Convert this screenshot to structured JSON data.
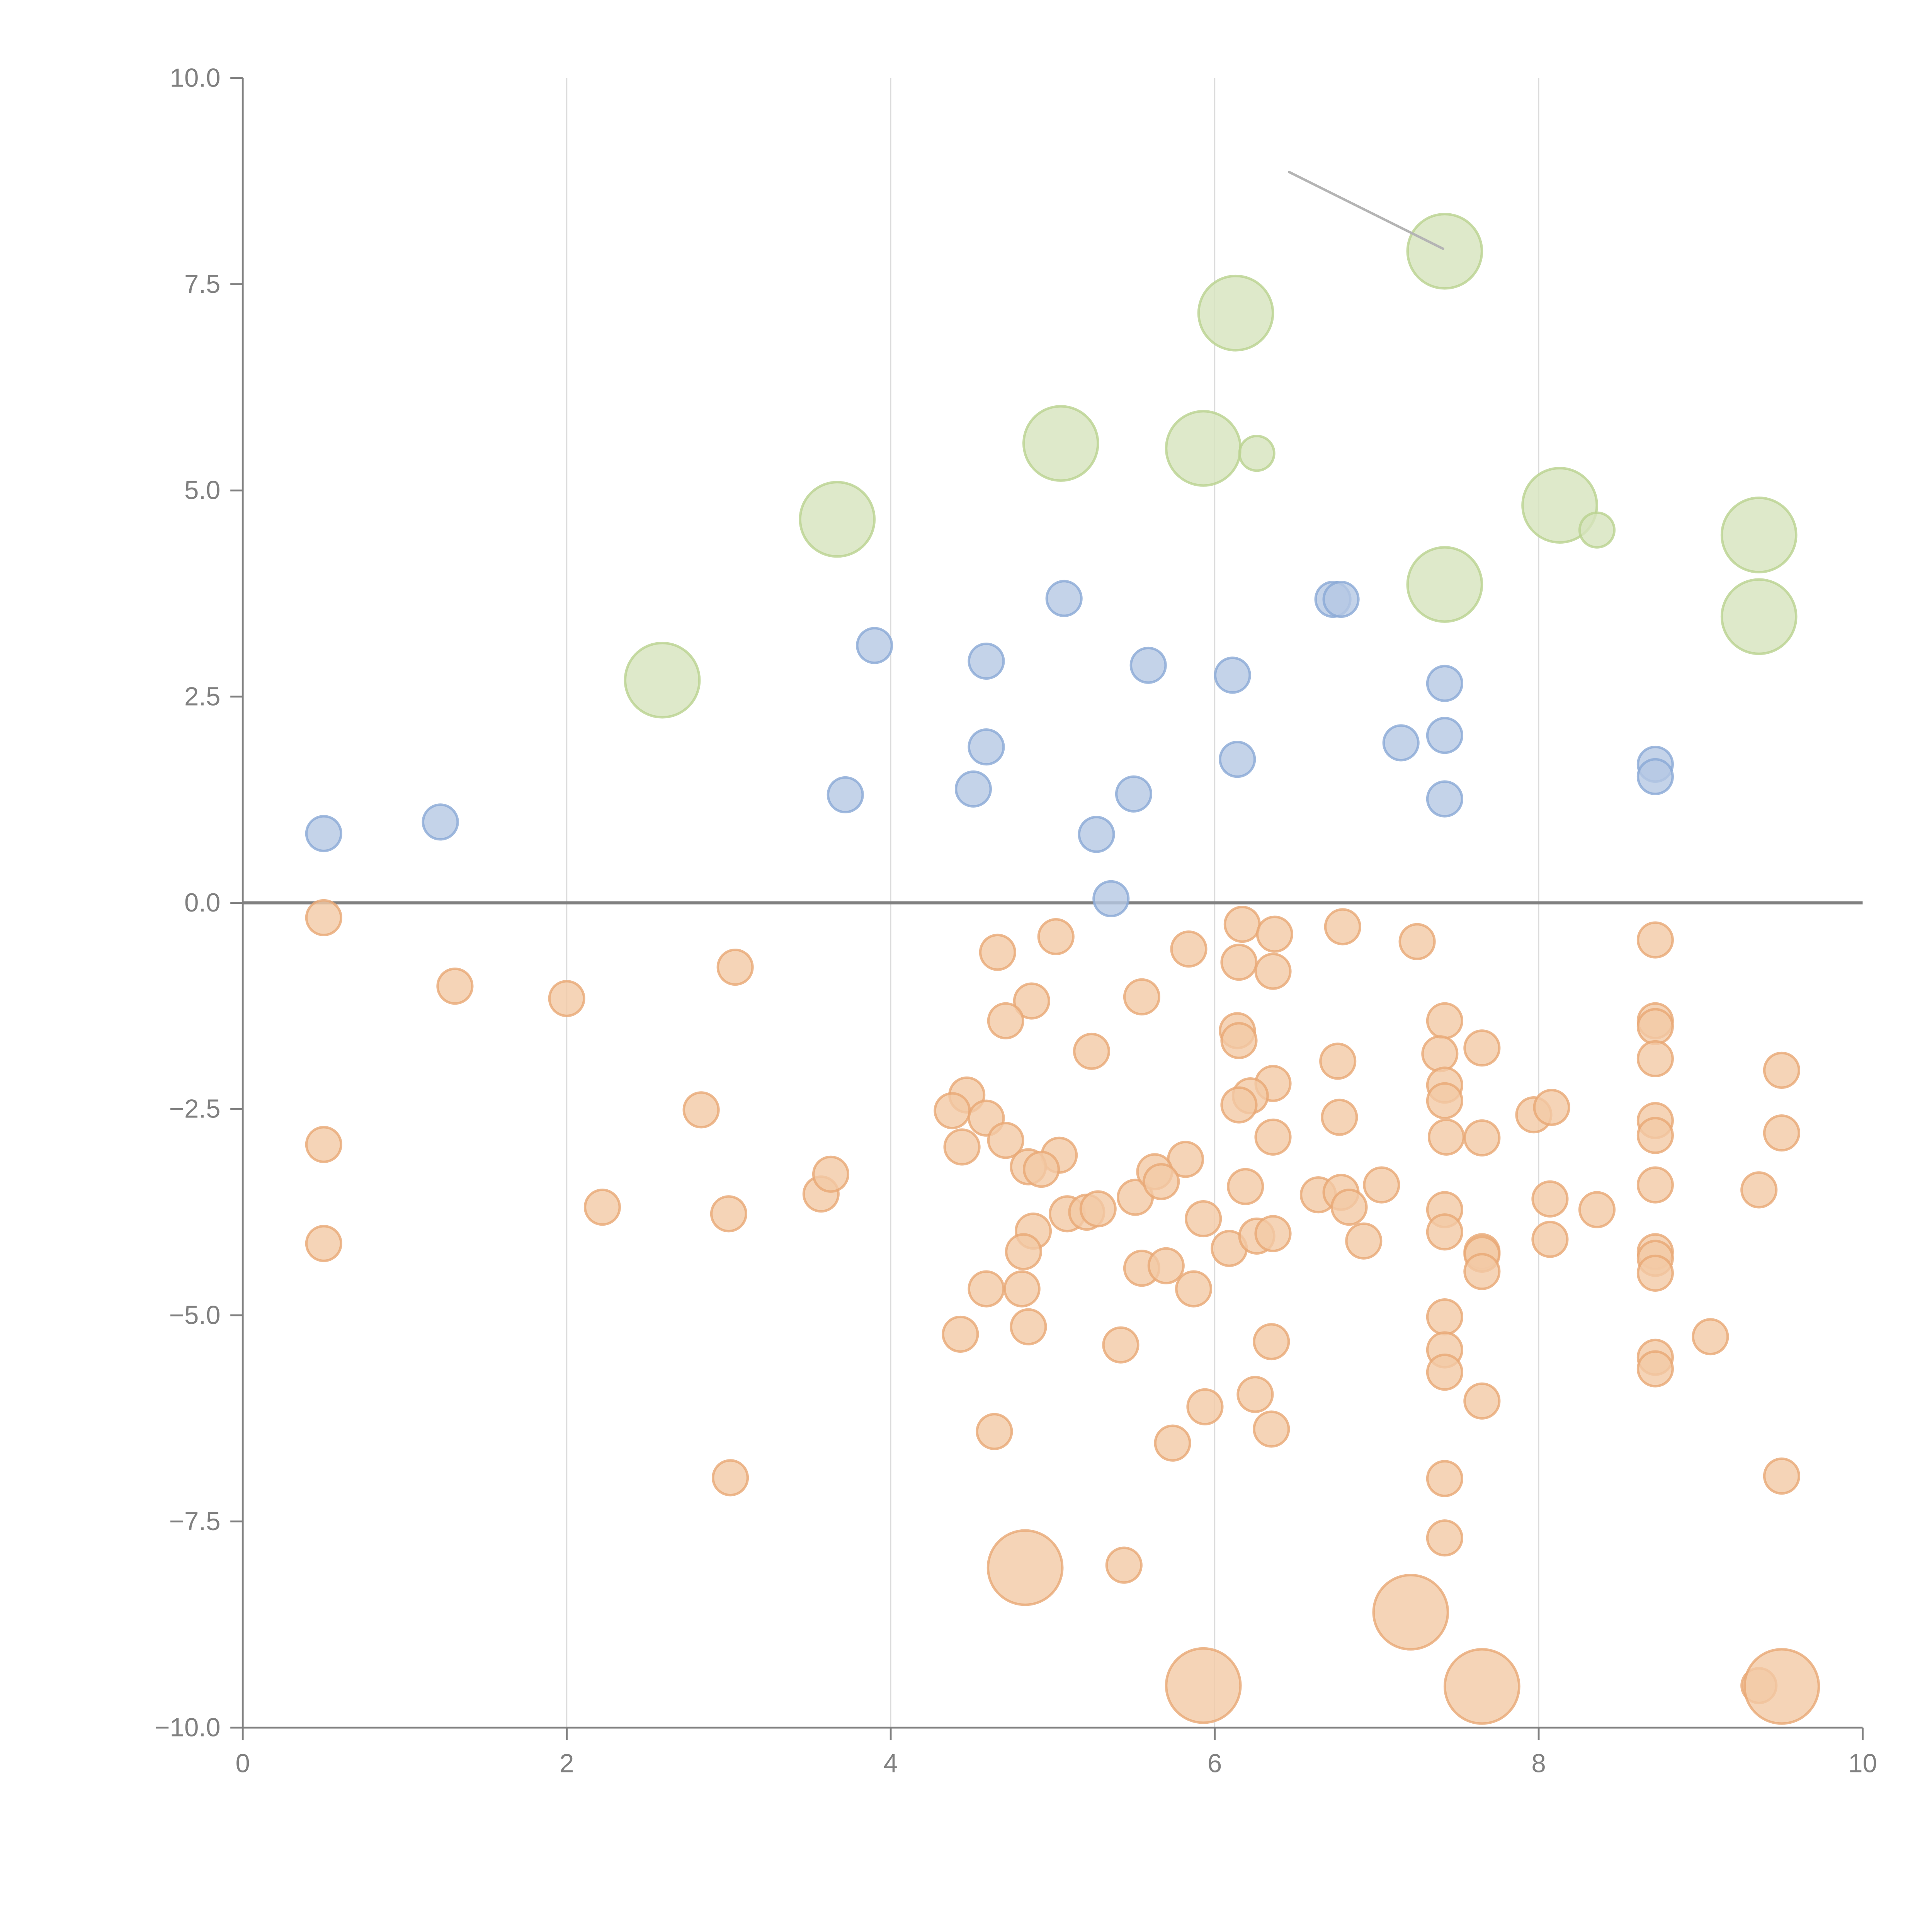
{
  "chart_data": {
    "type": "scatter",
    "title": "",
    "xlabel": "",
    "ylabel": "",
    "xlim": [
      0,
      10
    ],
    "ylim": [
      -10,
      10
    ],
    "grid": "vertical-only",
    "legend": "none",
    "x_ticks": [
      "0",
      "2",
      "4",
      "6",
      "8",
      "10"
    ],
    "x_tick_values": [
      0,
      2,
      4,
      6,
      8,
      10
    ],
    "y_ticks": [
      "10.0",
      "7.5",
      "5.0",
      "2.5",
      "0.0",
      "−2.5",
      "−5.0",
      "−7.5",
      "−10.0"
    ],
    "y_tick_values": [
      10,
      7.5,
      5,
      2.5,
      0,
      -2.5,
      -5,
      -7.5,
      -10
    ],
    "reference_line_y": 0,
    "annotation_line": {
      "from": [
        6.46,
        8.86
      ],
      "to": [
        7.41,
        7.93
      ],
      "color": "#b4b4b4"
    },
    "size_scale": {
      "small": 10,
      "large": 45
    },
    "series": [
      {
        "fill": "#d6e3bd",
        "stroke": "#b9d28f",
        "points": [
          [
            7.42,
            7.9,
            45
          ],
          [
            6.13,
            7.15,
            45
          ],
          [
            5.05,
            5.57,
            45
          ],
          [
            5.93,
            5.51,
            45
          ],
          [
            6.26,
            5.45,
            10
          ],
          [
            3.67,
            4.65,
            45
          ],
          [
            8.13,
            4.82,
            45
          ],
          [
            8.36,
            4.52,
            10
          ],
          [
            9.36,
            4.46,
            45
          ],
          [
            7.42,
            3.86,
            45
          ],
          [
            9.36,
            3.47,
            45
          ],
          [
            2.59,
            2.7,
            45
          ]
        ]
      },
      {
        "fill": "#b5c8e4",
        "stroke": "#8aa9d6",
        "points": [
          [
            0.5,
            0.84,
            10
          ],
          [
            1.22,
            0.98,
            10
          ],
          [
            3.9,
            3.12,
            10
          ],
          [
            3.72,
            1.31,
            10
          ],
          [
            4.59,
            2.93,
            10
          ],
          [
            4.59,
            1.89,
            10
          ],
          [
            4.51,
            1.38,
            10
          ],
          [
            5.07,
            3.69,
            10
          ],
          [
            5.59,
            2.88,
            10
          ],
          [
            5.5,
            1.32,
            10
          ],
          [
            5.27,
            0.83,
            10
          ],
          [
            5.36,
            0.05,
            10
          ],
          [
            6.11,
            2.76,
            10
          ],
          [
            6.14,
            1.74,
            10
          ],
          [
            6.73,
            3.68,
            10
          ],
          [
            6.78,
            3.68,
            10
          ],
          [
            7.15,
            1.94,
            10
          ],
          [
            7.42,
            2.66,
            10
          ],
          [
            7.42,
            2.03,
            10
          ],
          [
            7.42,
            1.26,
            10
          ],
          [
            8.72,
            1.68,
            10
          ],
          [
            8.72,
            1.53,
            10
          ]
        ]
      },
      {
        "fill": "#f2c9a5",
        "stroke": "#e8a774",
        "points": [
          [
            0.5,
            -0.18,
            10
          ],
          [
            0.5,
            -2.93,
            10
          ],
          [
            0.5,
            -4.13,
            10
          ],
          [
            1.31,
            -1.01,
            10
          ],
          [
            2.0,
            -1.16,
            10
          ],
          [
            3.04,
            -0.78,
            10
          ],
          [
            2.83,
            -2.51,
            10
          ],
          [
            2.22,
            -3.69,
            10
          ],
          [
            3.0,
            -3.77,
            10
          ],
          [
            3.01,
            -6.97,
            10
          ],
          [
            3.57,
            -3.53,
            10
          ],
          [
            3.63,
            -3.29,
            10
          ],
          [
            4.66,
            -0.6,
            10
          ],
          [
            5.02,
            -0.41,
            10
          ],
          [
            4.87,
            -1.19,
            10
          ],
          [
            4.71,
            -1.43,
            10
          ],
          [
            5.24,
            -1.8,
            10
          ],
          [
            4.47,
            -2.33,
            10
          ],
          [
            4.38,
            -2.52,
            10
          ],
          [
            4.59,
            -2.61,
            10
          ],
          [
            4.71,
            -2.88,
            10
          ],
          [
            4.44,
            -2.96,
            10
          ],
          [
            5.04,
            -3.06,
            10
          ],
          [
            4.85,
            -3.2,
            10
          ],
          [
            4.93,
            -3.23,
            10
          ],
          [
            4.88,
            -3.98,
            10
          ],
          [
            4.82,
            -4.23,
            10
          ],
          [
            5.09,
            -3.77,
            10
          ],
          [
            5.21,
            -3.75,
            10
          ],
          [
            5.28,
            -3.71,
            10
          ],
          [
            5.51,
            -3.57,
            10
          ],
          [
            4.81,
            -4.68,
            10
          ],
          [
            4.59,
            -4.68,
            10
          ],
          [
            4.85,
            -5.14,
            10
          ],
          [
            4.43,
            -5.23,
            10
          ],
          [
            4.64,
            -6.41,
            10
          ],
          [
            5.42,
            -5.36,
            10
          ],
          [
            5.44,
            -8.03,
            10
          ],
          [
            5.55,
            -1.14,
            10
          ],
          [
            5.84,
            -0.56,
            10
          ],
          [
            5.82,
            -3.11,
            10
          ],
          [
            5.63,
            -3.26,
            10
          ],
          [
            5.67,
            -3.38,
            10
          ],
          [
            5.93,
            -3.83,
            10
          ],
          [
            5.55,
            -4.43,
            10
          ],
          [
            5.7,
            -4.4,
            10
          ],
          [
            5.87,
            -4.68,
            10
          ],
          [
            6.09,
            -4.19,
            10
          ],
          [
            5.74,
            -6.55,
            10
          ],
          [
            5.94,
            -6.11,
            10
          ],
          [
            6.17,
            -0.26,
            10
          ],
          [
            6.37,
            -0.38,
            10
          ],
          [
            6.15,
            -0.72,
            10
          ],
          [
            6.36,
            -0.83,
            10
          ],
          [
            6.14,
            -1.55,
            10
          ],
          [
            6.15,
            -1.67,
            10
          ],
          [
            6.36,
            -2.19,
            10
          ],
          [
            6.22,
            -2.34,
            10
          ],
          [
            6.15,
            -2.45,
            10
          ],
          [
            6.36,
            -2.84,
            10
          ],
          [
            6.19,
            -3.44,
            10
          ],
          [
            6.26,
            -4.04,
            10
          ],
          [
            6.36,
            -4.01,
            10
          ],
          [
            6.64,
            -3.54,
            10
          ],
          [
            6.78,
            -3.51,
            10
          ],
          [
            6.83,
            -3.69,
            10
          ],
          [
            6.92,
            -4.1,
            10
          ],
          [
            7.03,
            -3.42,
            10
          ],
          [
            6.35,
            -5.32,
            10
          ],
          [
            6.25,
            -5.96,
            10
          ],
          [
            6.35,
            -6.38,
            10
          ],
          [
            6.79,
            -0.29,
            10
          ],
          [
            7.25,
            -0.47,
            10
          ],
          [
            6.76,
            -1.92,
            10
          ],
          [
            6.77,
            -2.6,
            10
          ],
          [
            7.42,
            -1.43,
            10
          ],
          [
            7.39,
            -1.83,
            10
          ],
          [
            7.42,
            -2.21,
            10
          ],
          [
            7.42,
            -2.4,
            10
          ],
          [
            7.43,
            -2.84,
            10
          ],
          [
            7.65,
            -1.76,
            10
          ],
          [
            7.65,
            -2.85,
            10
          ],
          [
            7.42,
            -3.72,
            10
          ],
          [
            7.42,
            -3.99,
            10
          ],
          [
            7.65,
            -4.23,
            10
          ],
          [
            7.65,
            -4.26,
            10
          ],
          [
            7.65,
            -4.47,
            10
          ],
          [
            7.42,
            -5.02,
            10
          ],
          [
            7.42,
            -5.42,
            10
          ],
          [
            7.42,
            -5.69,
            10
          ],
          [
            7.65,
            -6.04,
            10
          ],
          [
            7.42,
            -6.98,
            10
          ],
          [
            7.42,
            -7.7,
            10
          ],
          [
            7.97,
            -2.57,
            10
          ],
          [
            8.08,
            -2.48,
            10
          ],
          [
            8.07,
            -3.59,
            10
          ],
          [
            8.07,
            -4.08,
            10
          ],
          [
            8.36,
            -3.72,
            10
          ],
          [
            8.72,
            -0.45,
            10
          ],
          [
            8.72,
            -1.43,
            10
          ],
          [
            8.72,
            -1.5,
            10
          ],
          [
            8.72,
            -1.89,
            10
          ],
          [
            8.72,
            -2.64,
            10
          ],
          [
            8.72,
            -2.82,
            10
          ],
          [
            8.72,
            -3.42,
            10
          ],
          [
            8.72,
            -4.23,
            10
          ],
          [
            8.72,
            -4.31,
            10
          ],
          [
            8.72,
            -4.49,
            10
          ],
          [
            8.72,
            -5.51,
            10
          ],
          [
            8.72,
            -5.65,
            10
          ],
          [
            9.06,
            -5.26,
            10
          ],
          [
            9.5,
            -2.03,
            10
          ],
          [
            9.5,
            -2.79,
            10
          ],
          [
            9.36,
            -3.48,
            10
          ],
          [
            9.5,
            -6.95,
            10
          ],
          [
            9.36,
            -9.49,
            10
          ],
          [
            4.83,
            -8.06,
            45
          ],
          [
            7.21,
            -8.6,
            45
          ],
          [
            5.93,
            -9.49,
            45
          ],
          [
            7.65,
            -9.5,
            45
          ],
          [
            9.5,
            -9.5,
            45
          ]
        ]
      }
    ]
  }
}
